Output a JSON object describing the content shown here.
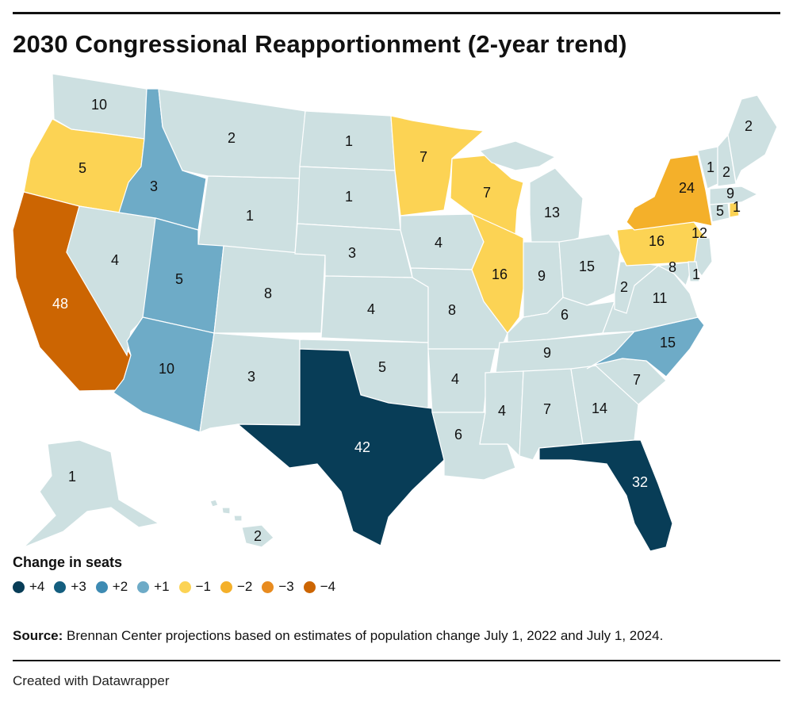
{
  "title": "2030 Congressional Reapportionment (2-year trend)",
  "legend": {
    "title": "Change in seats",
    "items": [
      {
        "label": "+4",
        "color": "#083d57"
      },
      {
        "label": "+3",
        "color": "#145e7f"
      },
      {
        "label": "+2",
        "color": "#3e8bb3"
      },
      {
        "label": "+1",
        "color": "#6eabc7"
      },
      {
        "label": "−1",
        "color": "#fcd354"
      },
      {
        "label": "−2",
        "color": "#f4b02a"
      },
      {
        "label": "−3",
        "color": "#e88b1f"
      },
      {
        "label": "−4",
        "color": "#cc6502"
      }
    ]
  },
  "colors": {
    "no_change": "#cde0e1"
  },
  "states": [
    {
      "state": "WA",
      "seats": "10",
      "change": 0
    },
    {
      "state": "OR",
      "seats": "5",
      "change": -1
    },
    {
      "state": "CA",
      "seats": "48",
      "change": -4
    },
    {
      "state": "ID",
      "seats": "3",
      "change": 1
    },
    {
      "state": "NV",
      "seats": "4",
      "change": 0
    },
    {
      "state": "MT",
      "seats": "2",
      "change": 0
    },
    {
      "state": "WY",
      "seats": "1",
      "change": 0
    },
    {
      "state": "UT",
      "seats": "5",
      "change": 1
    },
    {
      "state": "AZ",
      "seats": "10",
      "change": 1
    },
    {
      "state": "CO",
      "seats": "8",
      "change": 0
    },
    {
      "state": "NM",
      "seats": "3",
      "change": 0
    },
    {
      "state": "ND",
      "seats": "1",
      "change": 0
    },
    {
      "state": "SD",
      "seats": "1",
      "change": 0
    },
    {
      "state": "NE",
      "seats": "3",
      "change": 0
    },
    {
      "state": "KS",
      "seats": "4",
      "change": 0
    },
    {
      "state": "OK",
      "seats": "5",
      "change": 0
    },
    {
      "state": "TX",
      "seats": "42",
      "change": 4
    },
    {
      "state": "MN",
      "seats": "7",
      "change": -1
    },
    {
      "state": "IA",
      "seats": "4",
      "change": 0
    },
    {
      "state": "MO",
      "seats": "8",
      "change": 0
    },
    {
      "state": "AR",
      "seats": "4",
      "change": 0
    },
    {
      "state": "LA",
      "seats": "6",
      "change": 0
    },
    {
      "state": "WI",
      "seats": "7",
      "change": -1
    },
    {
      "state": "IL",
      "seats": "16",
      "change": -1
    },
    {
      "state": "MI",
      "seats": "13",
      "change": 0
    },
    {
      "state": "IN",
      "seats": "9",
      "change": 0
    },
    {
      "state": "OH",
      "seats": "15",
      "change": 0
    },
    {
      "state": "KY",
      "seats": "6",
      "change": 0
    },
    {
      "state": "TN",
      "seats": "9",
      "change": 0
    },
    {
      "state": "MS",
      "seats": "4",
      "change": 0
    },
    {
      "state": "AL",
      "seats": "7",
      "change": 0
    },
    {
      "state": "GA",
      "seats": "14",
      "change": 0
    },
    {
      "state": "FL",
      "seats": "32",
      "change": 4
    },
    {
      "state": "SC",
      "seats": "7",
      "change": 0
    },
    {
      "state": "NC",
      "seats": "15",
      "change": 1
    },
    {
      "state": "VA",
      "seats": "11",
      "change": 0
    },
    {
      "state": "WV",
      "seats": "2",
      "change": 0
    },
    {
      "state": "PA",
      "seats": "16",
      "change": -1
    },
    {
      "state": "NY",
      "seats": "24",
      "change": -2
    },
    {
      "state": "MD",
      "seats": "8",
      "change": 0
    },
    {
      "state": "DE",
      "seats": "1",
      "change": 0
    },
    {
      "state": "NJ",
      "seats": "12",
      "change": 0
    },
    {
      "state": "CT",
      "seats": "5",
      "change": 0
    },
    {
      "state": "RI",
      "seats": "1",
      "change": -1
    },
    {
      "state": "MA",
      "seats": "9",
      "change": 0
    },
    {
      "state": "VT",
      "seats": "1",
      "change": 0
    },
    {
      "state": "NH",
      "seats": "2",
      "change": 0
    },
    {
      "state": "ME",
      "seats": "2",
      "change": 0
    },
    {
      "state": "AK",
      "seats": "1",
      "change": 0
    },
    {
      "state": "HI",
      "seats": "2",
      "change": 0
    }
  ],
  "source": {
    "label": "Source:",
    "text": " Brennan Center projections based on estimates of population change July 1, 2022 and July 1, 2024."
  },
  "credit": "Created with Datawrapper"
}
